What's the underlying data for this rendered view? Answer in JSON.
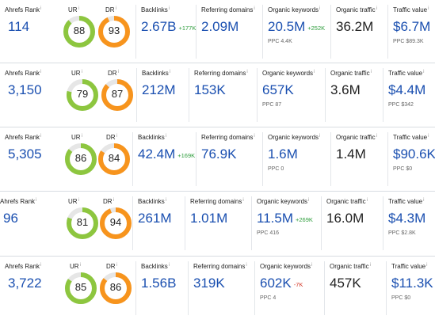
{
  "labels": {
    "ahrefs_rank": "Ahrefs Rank",
    "ur": "UR",
    "dr": "DR",
    "backlinks": "Backlinks",
    "referring_domains": "Referring domains",
    "organic_keywords": "Organic keywords",
    "organic_traffic": "Organic traffic",
    "traffic_value": "Traffic value",
    "info_glyph": "i"
  },
  "colors": {
    "ur_ring": "#8dc63f",
    "dr_ring": "#f7941d",
    "value_blue": "#1a4fb0",
    "ring_track": "#e6e6e6"
  },
  "rows": [
    {
      "ahrefs_rank": "114",
      "ur": 88,
      "dr": 93,
      "backlinks": "2.67B",
      "backlinks_delta": "+177K",
      "referring_domains": "2.09M",
      "organic_keywords": "20.5M",
      "organic_keywords_delta": "+252K",
      "organic_keywords_ppc": "PPC 4.4K",
      "organic_traffic": "36.2M",
      "traffic_value": "$6.7M",
      "traffic_value_ppc": "PPC $89.3K"
    },
    {
      "ahrefs_rank": "3,150",
      "ur": 79,
      "dr": 87,
      "backlinks": "212M",
      "backlinks_delta": "",
      "referring_domains": "153K",
      "organic_keywords": "657K",
      "organic_keywords_delta": "",
      "organic_keywords_ppc": "PPC 87",
      "organic_traffic": "3.6M",
      "traffic_value": "$4.4M",
      "traffic_value_ppc": "PPC $342"
    },
    {
      "ahrefs_rank": "5,305",
      "ur": 86,
      "dr": 84,
      "backlinks": "42.4M",
      "backlinks_delta": "+169K",
      "referring_domains": "76.9K",
      "organic_keywords": "1.6M",
      "organic_keywords_delta": "",
      "organic_keywords_ppc": "PPC 0",
      "organic_traffic": "1.4M",
      "traffic_value": "$90.6K",
      "traffic_value_ppc": "PPC $0"
    },
    {
      "ahrefs_rank": "96",
      "ur": 81,
      "dr": 94,
      "backlinks": "261M",
      "backlinks_delta": "",
      "referring_domains": "1.01M",
      "organic_keywords": "11.5M",
      "organic_keywords_delta": "+269K",
      "organic_keywords_ppc": "PPC 416",
      "organic_traffic": "16.0M",
      "traffic_value": "$4.3M",
      "traffic_value_ppc": "PPC $2.8K"
    },
    {
      "ahrefs_rank": "3,722",
      "ur": 85,
      "dr": 86,
      "backlinks": "1.56B",
      "backlinks_delta": "",
      "referring_domains": "319K",
      "organic_keywords": "602K",
      "organic_keywords_delta": "-7K",
      "organic_keywords_ppc": "PPC 4",
      "organic_traffic": "457K",
      "traffic_value": "$11.3K",
      "traffic_value_ppc": "PPC $0"
    }
  ]
}
